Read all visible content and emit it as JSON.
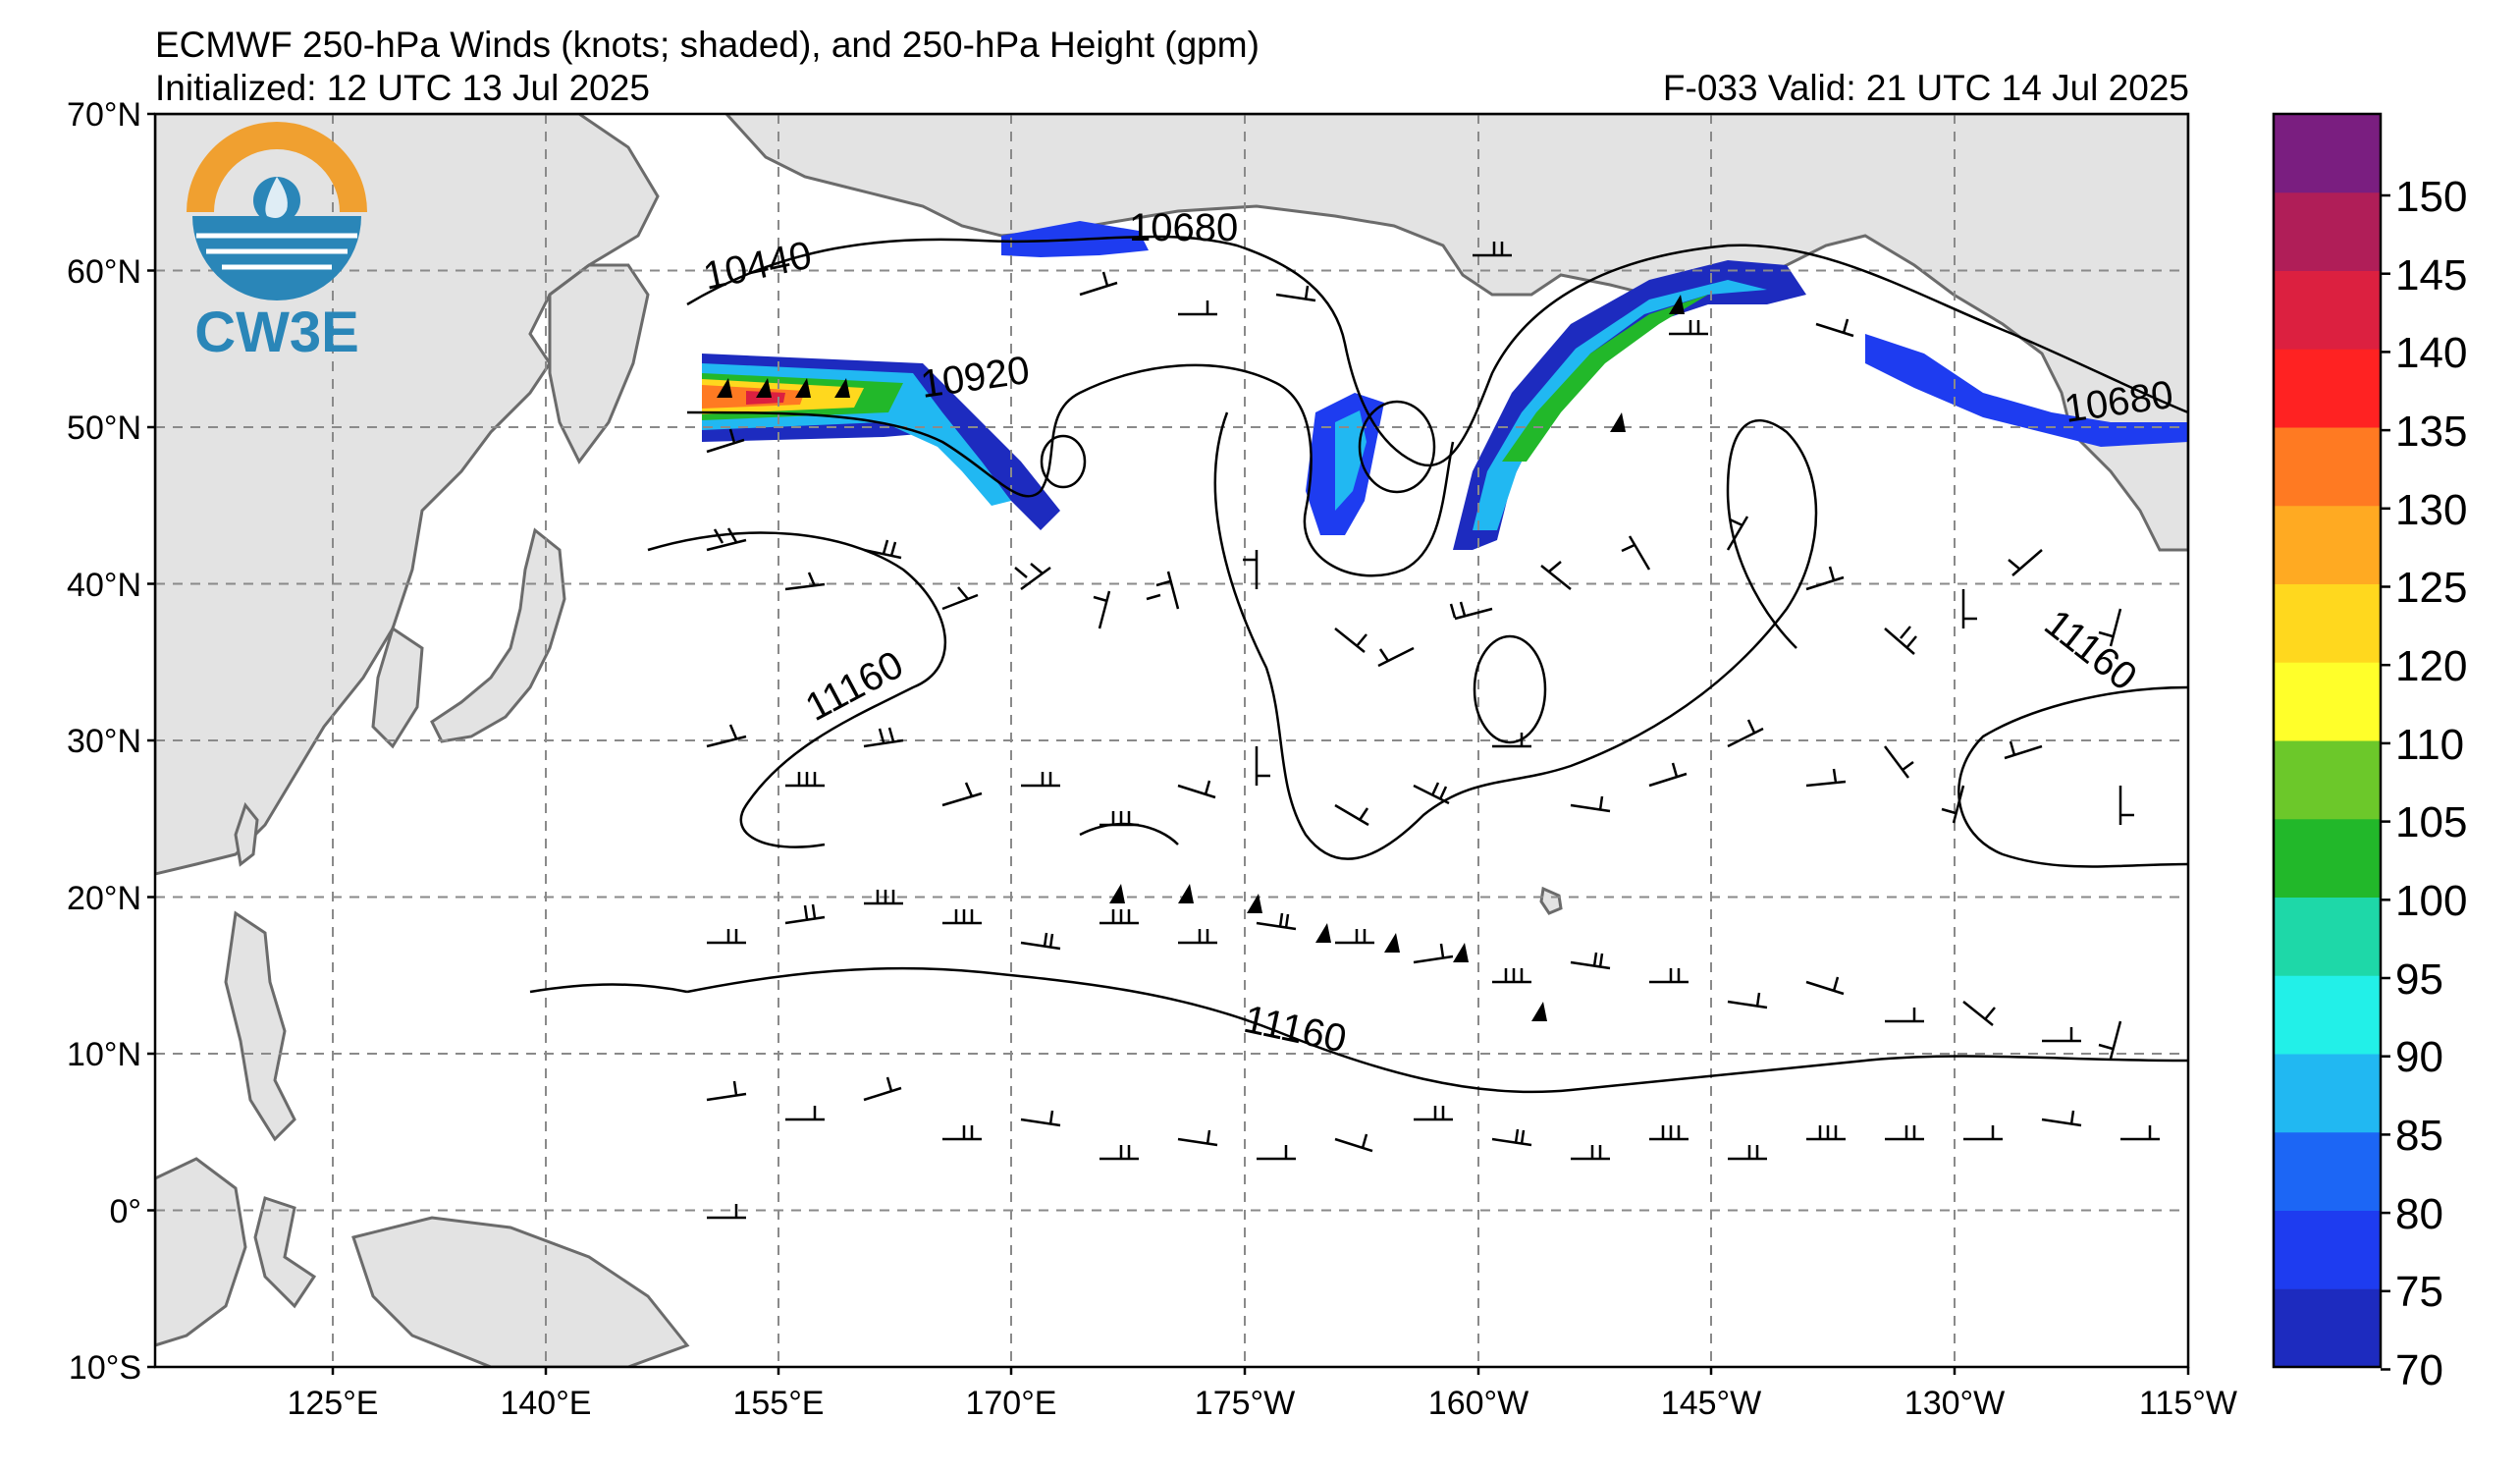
{
  "header": {
    "title": "ECMWF 250-hPa Winds (knots; shaded), and 250-hPa Height (gpm)",
    "initialized": "Initialized: 12 UTC 13 Jul 2025",
    "valid": "F-033  Valid: 21 UTC 14 Jul 2025"
  },
  "logo": {
    "text": "CW3E",
    "colors": {
      "ring": "#f0a030",
      "water": "#2a86b8",
      "text": "#2a86b8"
    }
  },
  "axes": {
    "lat_labels": [
      "70°N",
      "60°N",
      "50°N",
      "40°N",
      "30°N",
      "20°N",
      "10°N",
      "0°",
      "10°S"
    ],
    "lon_labels": [
      "125°E",
      "140°E",
      "155°E",
      "170°E",
      "175°W",
      "160°W",
      "145°W",
      "130°W",
      "115°W"
    ],
    "lat_range": [
      -10,
      70
    ],
    "lon_range_east": [
      115,
      245
    ]
  },
  "colorbar": {
    "labels": [
      "150",
      "145",
      "140",
      "135",
      "130",
      "125",
      "120",
      "110",
      "105",
      "100",
      "95",
      "90",
      "85",
      "80",
      "75",
      "70"
    ],
    "colors": [
      "#1d2bbf",
      "#1e3cf0",
      "#1c66f5",
      "#21b8f2",
      "#22f0e8",
      "#1ed8a8",
      "#22b82a",
      "#6cc82a",
      "#ffff2a",
      "#ffd81e",
      "#ffaa22",
      "#ff7a22",
      "#ff2222",
      "#dc2040",
      "#b01e58",
      "#7a1e80"
    ]
  },
  "contours": {
    "labels": [
      "10440",
      "10680",
      "10920",
      "11160",
      "11160",
      "11160",
      "10680"
    ]
  }
}
